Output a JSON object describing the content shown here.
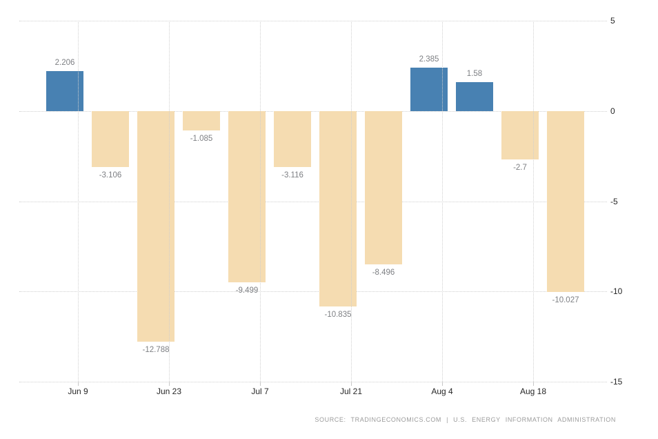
{
  "chart_data": {
    "type": "bar",
    "title": "",
    "xlabel": "",
    "ylabel": "",
    "ylim": [
      -15,
      5
    ],
    "grid": true,
    "legend": "none",
    "y_axis_side": "right",
    "y_ticks": [
      {
        "value": 5,
        "label": "5"
      },
      {
        "value": 0,
        "label": "0"
      },
      {
        "value": -5,
        "label": "-5"
      },
      {
        "value": -10,
        "label": "-10"
      },
      {
        "value": -15,
        "label": "-15"
      }
    ],
    "x_tick_labels": [
      "Jun 9",
      "Jun 23",
      "Jul 7",
      "Jul 21",
      "Aug 4",
      "Aug 18"
    ],
    "bars": [
      {
        "value": 2.206,
        "label": "2.206"
      },
      {
        "value": -3.106,
        "label": "-3.106"
      },
      {
        "value": -12.788,
        "label": "-12.788"
      },
      {
        "value": -1.085,
        "label": "-1.085"
      },
      {
        "value": -9.499,
        "label": "-9.499"
      },
      {
        "value": -3.116,
        "label": "-3.116"
      },
      {
        "value": -10.835,
        "label": "-10.835"
      },
      {
        "value": -8.496,
        "label": "-8.496"
      },
      {
        "value": 2.385,
        "label": "2.385"
      },
      {
        "value": 1.58,
        "label": "1.58"
      },
      {
        "value": -2.7,
        "label": "-2.7"
      },
      {
        "value": -10.027,
        "label": "-10.027"
      }
    ],
    "colors": {
      "positive_bar": "#4881b2",
      "negative_bar": "#f5dcb1",
      "gridline": "#cfcfcf",
      "value_label": "#7d7f83",
      "axis_label": "#262626",
      "source_text": "#9b9b9b"
    }
  },
  "footer": {
    "source_text": "SOURCE: TRADINGECONOMICS.COM | U.S. ENERGY INFORMATION ADMINISTRATION"
  }
}
